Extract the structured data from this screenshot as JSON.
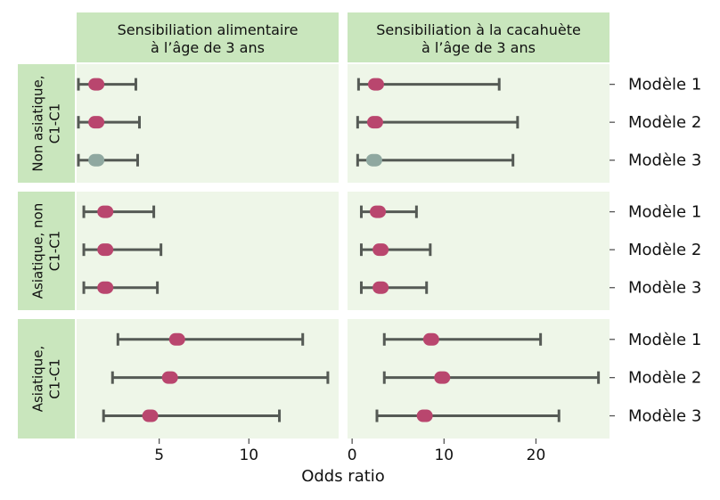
{
  "chart_data": {
    "type": "forest",
    "xlabel": "Odds ratio",
    "columns": [
      {
        "title_lines": [
          "Sensibiliation alimentaire",
          "à l’âge de 3 ans"
        ],
        "xlim": [
          0.4,
          15
        ],
        "ticks": [
          5,
          10
        ],
        "tick_labels": [
          "5",
          "10"
        ]
      },
      {
        "title_lines": [
          "Sensibiliation à la cacahuète",
          "à l’âge de 3 ans"
        ],
        "xlim": [
          -0.5,
          28
        ],
        "ticks": [
          0,
          10,
          20
        ],
        "tick_labels": [
          "0",
          "10",
          "20"
        ]
      }
    ],
    "rows": [
      {
        "label_lines": [
          "Non asiatique,",
          "C1-C1"
        ]
      },
      {
        "label_lines": [
          "Asiatique, non",
          "C1-C1"
        ]
      },
      {
        "label_lines": [
          "Asiatique,",
          "C1-C1"
        ]
      }
    ],
    "models": [
      "Modèle 1",
      "Modèle 2",
      "Modèle 3"
    ],
    "colors": {
      "significant": "#b9466e",
      "not_significant": "#8fa8a0"
    },
    "estimates": [
      [
        [
          {
            "or": 1.5,
            "lo": 0.5,
            "hi": 3.7,
            "sig": true
          },
          {
            "or": 1.5,
            "lo": 0.5,
            "hi": 3.9,
            "sig": true
          },
          {
            "or": 1.5,
            "lo": 0.5,
            "hi": 3.8,
            "sig": false
          }
        ],
        [
          {
            "or": 2.6,
            "lo": 0.7,
            "hi": 16.0,
            "sig": true
          },
          {
            "or": 2.5,
            "lo": 0.6,
            "hi": 18.0,
            "sig": true
          },
          {
            "or": 2.4,
            "lo": 0.6,
            "hi": 17.5,
            "sig": false
          }
        ]
      ],
      [
        [
          {
            "or": 2.0,
            "lo": 0.8,
            "hi": 4.7,
            "sig": true
          },
          {
            "or": 2.0,
            "lo": 0.8,
            "hi": 5.1,
            "sig": true
          },
          {
            "or": 2.0,
            "lo": 0.8,
            "hi": 4.9,
            "sig": true
          }
        ],
        [
          {
            "or": 2.8,
            "lo": 1.0,
            "hi": 7.0,
            "sig": true
          },
          {
            "or": 3.1,
            "lo": 1.0,
            "hi": 8.5,
            "sig": true
          },
          {
            "or": 3.1,
            "lo": 1.0,
            "hi": 8.1,
            "sig": true
          }
        ]
      ],
      [
        [
          {
            "or": 6.0,
            "lo": 2.7,
            "hi": 13.0,
            "sig": true
          },
          {
            "or": 5.6,
            "lo": 2.4,
            "hi": 14.4,
            "sig": true
          },
          {
            "or": 4.5,
            "lo": 1.9,
            "hi": 11.7,
            "sig": true
          }
        ],
        [
          {
            "or": 8.6,
            "lo": 3.5,
            "hi": 20.5,
            "sig": true
          },
          {
            "or": 9.8,
            "lo": 3.5,
            "hi": 26.8,
            "sig": true
          },
          {
            "or": 7.9,
            "lo": 2.7,
            "hi": 22.5,
            "sig": true
          }
        ]
      ]
    ]
  }
}
